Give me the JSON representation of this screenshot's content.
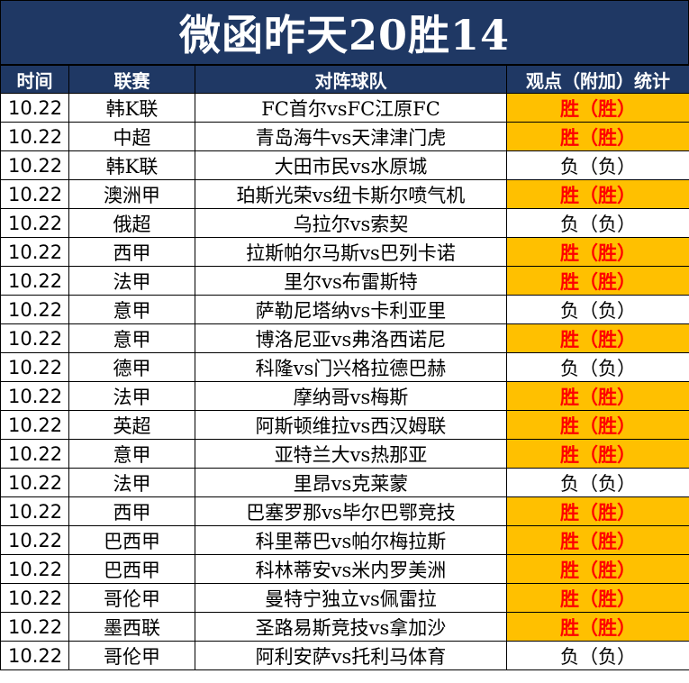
{
  "title": "微函昨天20胜14",
  "headers": [
    "时间",
    "联赛",
    "对阵球队",
    "观点（附加）统计"
  ],
  "rows": [
    {
      "time": "10.22",
      "league": "韩K联",
      "match": "FC首尔vsFC江原FC",
      "result": "胜（胜）",
      "win": true
    },
    {
      "time": "10.22",
      "league": "中超",
      "match": "青岛海牛vs天津津门虎",
      "result": "胜（胜）",
      "win": true
    },
    {
      "time": "10.22",
      "league": "韩K联",
      "match": "大田市民vs水原城",
      "result": "负（负）",
      "win": false
    },
    {
      "time": "10.22",
      "league": "澳洲甲",
      "match": "珀斯光荣vs纽卡斯尔喷气机",
      "result": "胜（胜）",
      "win": true
    },
    {
      "time": "10.22",
      "league": "俄超",
      "match": "乌拉尔vs索契",
      "result": "负（负）",
      "win": false
    },
    {
      "time": "10.22",
      "league": "西甲",
      "match": "拉斯帕尔马斯vs巴列卡诺",
      "result": "胜（胜）",
      "win": true
    },
    {
      "time": "10.22",
      "league": "法甲",
      "match": "里尔vs布雷斯特",
      "result": "胜（胜）",
      "win": true
    },
    {
      "time": "10.22",
      "league": "意甲",
      "match": "萨勒尼塔纳vs卡利亚里",
      "result": "负（负）",
      "win": false
    },
    {
      "time": "10.22",
      "league": "意甲",
      "match": "博洛尼亚vs弗洛西诺尼",
      "result": "胜（胜）",
      "win": true
    },
    {
      "time": "10.22",
      "league": "德甲",
      "match": "科隆vs门兴格拉德巴赫",
      "result": "负（负）",
      "win": false
    },
    {
      "time": "10.22",
      "league": "法甲",
      "match": "摩纳哥vs梅斯",
      "result": "胜（胜）",
      "win": true
    },
    {
      "time": "10.22",
      "league": "英超",
      "match": "阿斯顿维拉vs西汉姆联",
      "result": "胜（胜）",
      "win": true
    },
    {
      "time": "10.22",
      "league": "意甲",
      "match": "亚特兰大vs热那亚",
      "result": "胜（胜）",
      "win": true
    },
    {
      "time": "10.22",
      "league": "法甲",
      "match": "里昂vs克莱蒙",
      "result": "负（负）",
      "win": false
    },
    {
      "time": "10.22",
      "league": "西甲",
      "match": "巴塞罗那vs毕尔巴鄂竞技",
      "result": "胜（胜）",
      "win": true
    },
    {
      "time": "10.22",
      "league": "巴西甲",
      "match": "科里蒂巴vs帕尔梅拉斯",
      "result": "胜（胜）",
      "win": true
    },
    {
      "time": "10.22",
      "league": "巴西甲",
      "match": "科林蒂安vs米内罗美洲",
      "result": "胜（胜）",
      "win": true
    },
    {
      "time": "10.22",
      "league": "哥伦甲",
      "match": "曼特宁独立vs佩雷拉",
      "result": "胜（胜）",
      "win": true
    },
    {
      "time": "10.22",
      "league": "墨西联",
      "match": "圣路易斯竞技vs拿加沙",
      "result": "胜（胜）",
      "win": true
    },
    {
      "time": "10.22",
      "league": "哥伦甲",
      "match": "阿利安萨vs托利马体育",
      "result": "负（负）",
      "win": false
    }
  ]
}
